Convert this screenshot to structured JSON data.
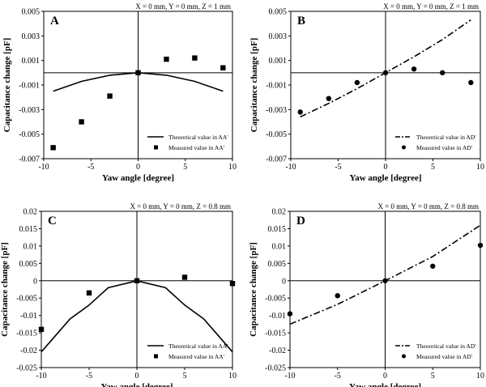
{
  "chart_data": [
    {
      "panel": "A",
      "type": "line+scatter",
      "condition": "X = 0 mm, Y = 0 mm, Z = 1 mm",
      "xlabel": "Yaw angle [degree]",
      "ylabel": "Capacitance change [pF]",
      "xlim": [
        -10,
        10
      ],
      "ylim": [
        -0.007,
        0.005
      ],
      "xticks": [
        -10,
        -5,
        0,
        5,
        10
      ],
      "yticks": [
        -0.007,
        -0.005,
        -0.003,
        -0.001,
        0.001,
        0.003,
        0.005
      ],
      "ytick_labels": [
        "-0.007",
        "-0.005",
        "-0.003",
        "-0.001",
        "0.001",
        "0.003",
        "0.005"
      ],
      "theory": {
        "name": "Theoretical value in AA'",
        "style": "solid",
        "x": [
          -9,
          -6,
          -3,
          0,
          3,
          6,
          9
        ],
        "y": [
          -0.0015,
          -0.0007,
          -0.0002,
          0.0,
          -0.0002,
          -0.0007,
          -0.0015
        ]
      },
      "measured": {
        "name": "Measured value in AA'",
        "marker": "square",
        "x": [
          -9,
          -6,
          -3,
          0,
          3,
          6,
          9
        ],
        "y": [
          -0.0061,
          -0.004,
          -0.0019,
          0.0,
          0.0011,
          0.0012,
          0.0004
        ]
      },
      "legend_position": "bottom-right"
    },
    {
      "panel": "B",
      "type": "line+scatter",
      "condition": "X = 0 mm, Y = 0 mm, Z = 1 mm",
      "xlabel": "Yaw angle [degree]",
      "ylabel": "Capacitance change [pF]",
      "xlim": [
        -10,
        10
      ],
      "ylim": [
        -0.007,
        0.005
      ],
      "xticks": [
        -10,
        -5,
        0,
        5,
        10
      ],
      "yticks": [
        -0.007,
        -0.005,
        -0.003,
        -0.001,
        0.001,
        0.003,
        0.005
      ],
      "ytick_labels": [
        "-0.007",
        "-0.005",
        "-0.003",
        "-0.001",
        "0.001",
        "0.003",
        "0.005"
      ],
      "theory": {
        "name": "Theoretical value in AD'",
        "style": "dashdot",
        "x": [
          -9,
          -6,
          -3,
          0,
          3,
          6,
          9
        ],
        "y": [
          -0.0036,
          -0.0025,
          -0.0013,
          0.0,
          0.0013,
          0.0027,
          0.0043
        ]
      },
      "measured": {
        "name": "Measured value in AD'",
        "marker": "circle",
        "x": [
          -9,
          -6,
          -3,
          0,
          3,
          6,
          9
        ],
        "y": [
          -0.0032,
          -0.0021,
          -0.0008,
          0.0,
          0.0003,
          0.0,
          -0.0008
        ]
      },
      "legend_position": "bottom-right"
    },
    {
      "panel": "C",
      "type": "line+scatter",
      "condition": "X = 0 mm, Y = 0 mm, Z = 0.8 mm",
      "xlabel": "Yaw angle [degree]",
      "ylabel": "Capacitance change [pF]",
      "xlim": [
        -10,
        10
      ],
      "ylim": [
        -0.025,
        0.02
      ],
      "xticks": [
        -10,
        -5,
        0,
        5,
        10
      ],
      "yticks": [
        -0.025,
        -0.02,
        -0.015,
        -0.01,
        -0.005,
        0,
        0.005,
        0.01,
        0.015,
        0.02
      ],
      "ytick_labels": [
        "-0.025",
        "-0.02",
        "-0.015",
        "-0.01",
        "-0.005",
        "0",
        "0.005",
        "0.01",
        "0.015",
        "0.02"
      ],
      "theory": {
        "name": "Theoretical value in AA'",
        "style": "solid",
        "x": [
          -10,
          -7,
          -5,
          -3,
          0,
          3,
          5,
          7,
          10
        ],
        "y": [
          -0.0205,
          -0.011,
          -0.007,
          -0.002,
          0.0,
          -0.002,
          -0.007,
          -0.011,
          -0.0205
        ]
      },
      "measured": {
        "name": "Measured value in AA'",
        "marker": "square",
        "x": [
          -10,
          -5,
          0,
          5,
          10
        ],
        "y": [
          -0.014,
          -0.0035,
          0.0,
          0.001,
          -0.0008
        ]
      },
      "legend_position": "bottom-right"
    },
    {
      "panel": "D",
      "type": "line+scatter",
      "condition": "X = 0 mm, Y = 0 mm, Z = 0.8 mm",
      "xlabel": "Yaw angle [degree]",
      "ylabel": "Capacitance change [pF]",
      "xlim": [
        -10,
        10
      ],
      "ylim": [
        -0.025,
        0.02
      ],
      "xticks": [
        -10,
        -5,
        0,
        5,
        10
      ],
      "yticks": [
        -0.025,
        -0.02,
        -0.015,
        -0.01,
        -0.005,
        0,
        0.005,
        0.01,
        0.015,
        0.02
      ],
      "ytick_labels": [
        "-0.025",
        "-0.02",
        "-0.015",
        "-0.01",
        "-0.005",
        "0",
        "0.005",
        "0.01",
        "0.015",
        "0.02"
      ],
      "theory": {
        "name": "Theoretical value in AD'",
        "style": "dashdot",
        "x": [
          -10,
          -5,
          0,
          5,
          10
        ],
        "y": [
          -0.0125,
          -0.0068,
          0.0,
          0.007,
          0.016
        ]
      },
      "measured": {
        "name": "Measured value in AD'",
        "marker": "circle",
        "x": [
          -10,
          -5,
          0,
          5,
          10
        ],
        "y": [
          -0.0095,
          -0.0043,
          0.0,
          0.0042,
          0.0102
        ]
      },
      "legend_position": "bottom-right"
    }
  ]
}
